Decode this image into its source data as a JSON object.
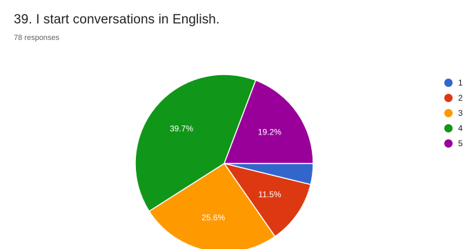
{
  "header": {
    "title": "39. I start conversations in English.",
    "subtitle": "78 responses"
  },
  "chart_data": {
    "type": "pie",
    "title": "39. I start conversations in English.",
    "total_responses": 78,
    "categories": [
      "1",
      "2",
      "3",
      "4",
      "5"
    ],
    "values": [
      3.8,
      11.5,
      25.6,
      39.7,
      19.2
    ],
    "data_labels": [
      "",
      "11.5%",
      "25.6%",
      "39.7%",
      "19.2%"
    ],
    "colors": [
      "#3366cc",
      "#dc3912",
      "#ff9900",
      "#109618",
      "#990099"
    ],
    "legend_position": "right"
  }
}
